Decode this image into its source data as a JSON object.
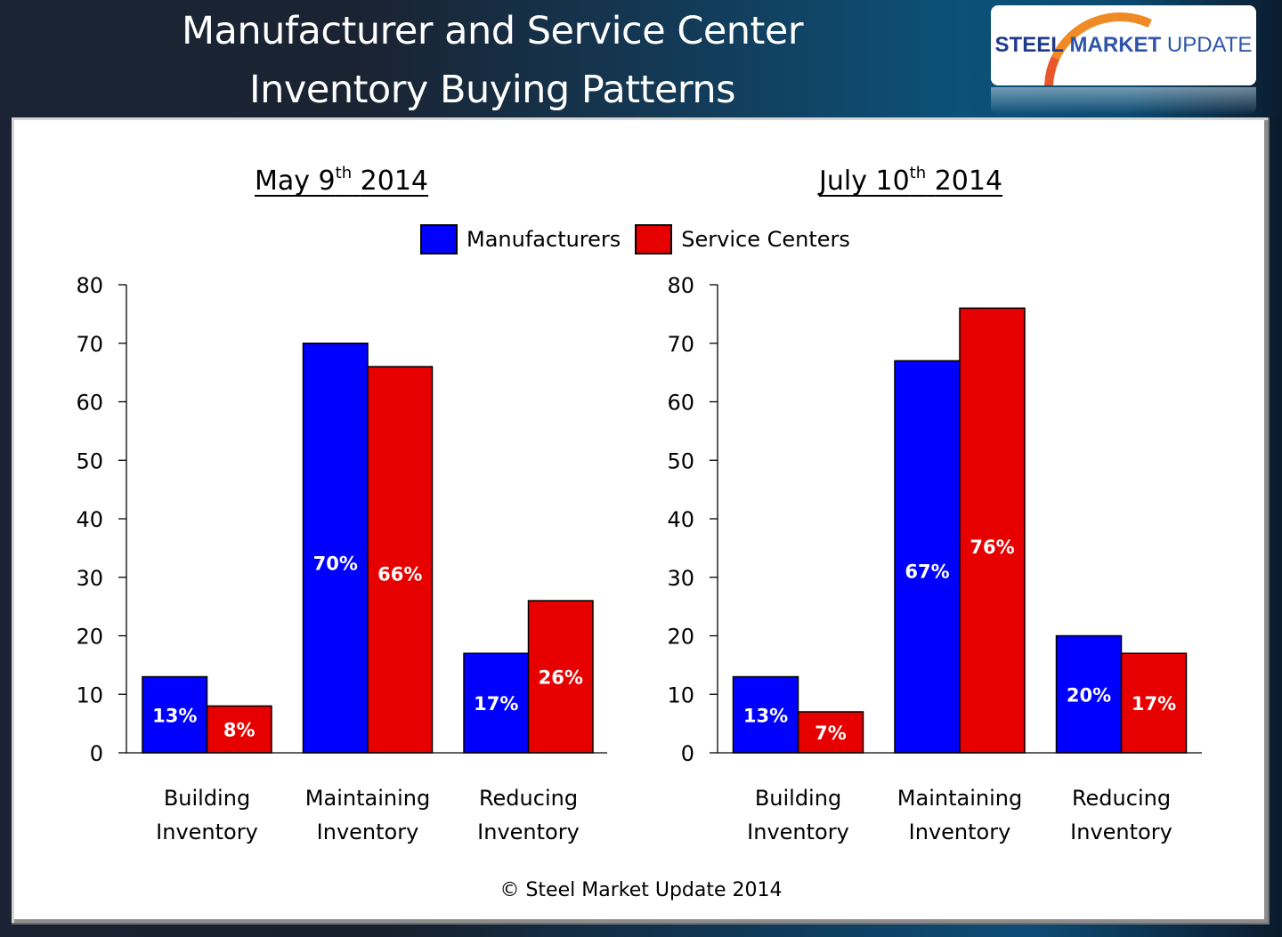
{
  "header": {
    "title_line1": "Manufacturer and Service Center",
    "title_line2": "Inventory Buying Patterns",
    "logo": {
      "word1": "STEEL",
      "word2": "MARKET",
      "word3": "UPDATE"
    }
  },
  "legend": [
    {
      "label": "Manufacturers",
      "color": "#0000ff"
    },
    {
      "label": "Service Centers",
      "color": "#e60000"
    }
  ],
  "footer": {
    "copyright": "© Steel Market Update 2014"
  },
  "chart_data": [
    {
      "type": "bar",
      "title": "May 9th 2014",
      "title_main": "May 9",
      "title_sup": "th",
      "title_year": "2014",
      "categories": [
        [
          "Building",
          "Inventory"
        ],
        [
          "Maintaining",
          "Inventory"
        ],
        [
          "Reducing",
          "Inventory"
        ]
      ],
      "series": [
        {
          "name": "Manufacturers",
          "color": "#0000ff",
          "values": [
            13,
            70,
            17
          ],
          "labels": [
            "13%",
            "70%",
            "17%"
          ]
        },
        {
          "name": "Service Centers",
          "color": "#e60000",
          "values": [
            8,
            66,
            26
          ],
          "labels": [
            "8%",
            "66%",
            "26%"
          ]
        }
      ],
      "yticks": [
        0,
        10,
        20,
        30,
        40,
        50,
        60,
        70,
        80
      ],
      "ylim": [
        0,
        80
      ],
      "xlabel": "",
      "ylabel": "",
      "grid": false,
      "legend": "top-center"
    },
    {
      "type": "bar",
      "title": "July 10th 2014",
      "title_main": "July 10",
      "title_sup": "th",
      "title_year": "2014",
      "categories": [
        [
          "Building",
          "Inventory"
        ],
        [
          "Maintaining",
          "Inventory"
        ],
        [
          "Reducing",
          "Inventory"
        ]
      ],
      "series": [
        {
          "name": "Manufacturers",
          "color": "#0000ff",
          "values": [
            13,
            67,
            20
          ],
          "labels": [
            "13%",
            "67%",
            "20%"
          ]
        },
        {
          "name": "Service Centers",
          "color": "#e60000",
          "values": [
            7,
            76,
            17
          ],
          "labels": [
            "7%",
            "76%",
            "17%"
          ]
        }
      ],
      "yticks": [
        0,
        10,
        20,
        30,
        40,
        50,
        60,
        70,
        80
      ],
      "ylim": [
        0,
        80
      ],
      "xlabel": "",
      "ylabel": "",
      "grid": false,
      "legend": "top-center"
    }
  ]
}
